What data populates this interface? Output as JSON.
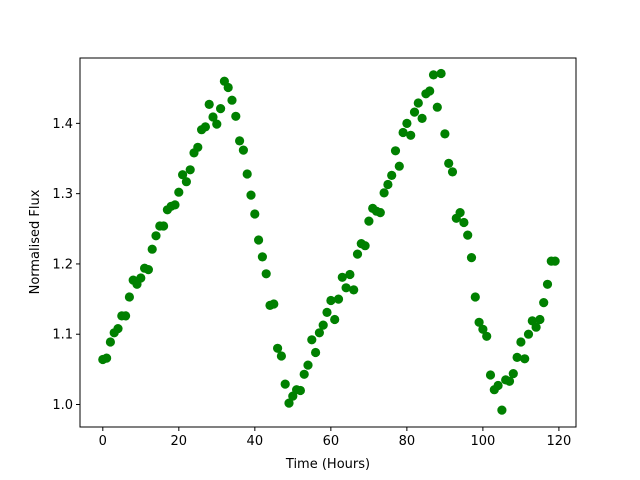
{
  "chart_data": {
    "type": "scatter",
    "xlabel": "Time (Hours)",
    "ylabel": "Normalised Flux",
    "xlim": [
      -6,
      124.5
    ],
    "ylim": [
      0.968,
      1.493
    ],
    "x_ticks": [
      0,
      20,
      40,
      60,
      80,
      100,
      120
    ],
    "y_ticks": [
      1.0,
      1.1,
      1.2,
      1.3,
      1.4
    ],
    "x_tick_labels": [
      "0",
      "20",
      "40",
      "60",
      "80",
      "100",
      "120"
    ],
    "y_tick_labels": [
      "1.0",
      "1.1",
      "1.2",
      "1.3",
      "1.4"
    ],
    "grid": false,
    "marker_color": "#008000",
    "series": [
      {
        "points": [
          [
            0.0,
            1.064
          ],
          [
            1.0,
            1.066
          ],
          [
            2.0,
            1.089
          ],
          [
            3.0,
            1.102
          ],
          [
            4.0,
            1.108
          ],
          [
            5.0,
            1.126
          ],
          [
            6.0,
            1.126
          ],
          [
            7.0,
            1.153
          ],
          [
            8.0,
            1.177
          ],
          [
            9.0,
            1.171
          ],
          [
            10.0,
            1.18
          ],
          [
            11.0,
            1.194
          ],
          [
            12.0,
            1.192
          ],
          [
            13.0,
            1.221
          ],
          [
            14.0,
            1.24
          ],
          [
            15.0,
            1.254
          ],
          [
            16.0,
            1.254
          ],
          [
            17.0,
            1.277
          ],
          [
            18.0,
            1.282
          ],
          [
            19.0,
            1.284
          ],
          [
            20.0,
            1.302
          ],
          [
            21.0,
            1.327
          ],
          [
            22.0,
            1.317
          ],
          [
            23.0,
            1.334
          ],
          [
            24.0,
            1.358
          ],
          [
            25.0,
            1.366
          ],
          [
            26.0,
            1.391
          ],
          [
            27.0,
            1.395
          ],
          [
            28.0,
            1.427
          ],
          [
            29.0,
            1.409
          ],
          [
            30.0,
            1.399
          ],
          [
            31.0,
            1.421
          ],
          [
            32.0,
            1.46
          ],
          [
            33.0,
            1.451
          ],
          [
            34.0,
            1.433
          ],
          [
            35.0,
            1.41
          ],
          [
            36.0,
            1.375
          ],
          [
            37.0,
            1.362
          ],
          [
            38.0,
            1.328
          ],
          [
            39.0,
            1.298
          ],
          [
            40.0,
            1.271
          ],
          [
            41.0,
            1.234
          ],
          [
            42.0,
            1.21
          ],
          [
            43.0,
            1.186
          ],
          [
            44.0,
            1.141
          ],
          [
            45.0,
            1.143
          ],
          [
            46.0,
            1.08
          ],
          [
            47.0,
            1.069
          ],
          [
            48.0,
            1.029
          ],
          [
            49.0,
            1.002
          ],
          [
            50.0,
            1.012
          ],
          [
            51.0,
            1.021
          ],
          [
            52.0,
            1.02
          ],
          [
            53.0,
            1.043
          ],
          [
            54.0,
            1.056
          ],
          [
            55.0,
            1.092
          ],
          [
            56.0,
            1.074
          ],
          [
            57.0,
            1.102
          ],
          [
            58.0,
            1.113
          ],
          [
            59.0,
            1.131
          ],
          [
            60.0,
            1.148
          ],
          [
            61.0,
            1.121
          ],
          [
            62.0,
            1.15
          ],
          [
            63.0,
            1.181
          ],
          [
            64.0,
            1.166
          ],
          [
            65.0,
            1.185
          ],
          [
            66.0,
            1.163
          ],
          [
            67.0,
            1.214
          ],
          [
            68.0,
            1.229
          ],
          [
            69.0,
            1.226
          ],
          [
            70.0,
            1.261
          ],
          [
            71.0,
            1.279
          ],
          [
            72.0,
            1.275
          ],
          [
            73.0,
            1.273
          ],
          [
            74.0,
            1.301
          ],
          [
            75.0,
            1.313
          ],
          [
            76.0,
            1.326
          ],
          [
            77.0,
            1.361
          ],
          [
            78.0,
            1.339
          ],
          [
            79.0,
            1.387
          ],
          [
            80.0,
            1.4
          ],
          [
            81.0,
            1.383
          ],
          [
            82.0,
            1.416
          ],
          [
            83.0,
            1.429
          ],
          [
            84.0,
            1.407
          ],
          [
            85.0,
            1.442
          ],
          [
            86.0,
            1.446
          ],
          [
            87.0,
            1.469
          ],
          [
            88.0,
            1.423
          ],
          [
            89.0,
            1.471
          ],
          [
            90.0,
            1.385
          ],
          [
            91.0,
            1.343
          ],
          [
            92.0,
            1.331
          ],
          [
            93.0,
            1.265
          ],
          [
            94.0,
            1.273
          ],
          [
            95.0,
            1.259
          ],
          [
            96.0,
            1.241
          ],
          [
            97.0,
            1.209
          ],
          [
            98.0,
            1.153
          ],
          [
            99.0,
            1.117
          ],
          [
            100.0,
            1.107
          ],
          [
            101.0,
            1.097
          ],
          [
            102.0,
            1.042
          ],
          [
            103.0,
            1.021
          ],
          [
            104.0,
            1.027
          ],
          [
            105.0,
            0.992
          ],
          [
            106.0,
            1.035
          ],
          [
            107.0,
            1.033
          ],
          [
            108.0,
            1.044
          ],
          [
            109.0,
            1.067
          ],
          [
            110.0,
            1.089
          ],
          [
            111.0,
            1.065
          ],
          [
            112.0,
            1.1
          ],
          [
            113.0,
            1.119
          ],
          [
            114.0,
            1.11
          ],
          [
            115.0,
            1.121
          ],
          [
            116.0,
            1.145
          ],
          [
            117.0,
            1.171
          ],
          [
            118.0,
            1.204
          ],
          [
            119.0,
            1.204
          ]
        ]
      }
    ]
  }
}
